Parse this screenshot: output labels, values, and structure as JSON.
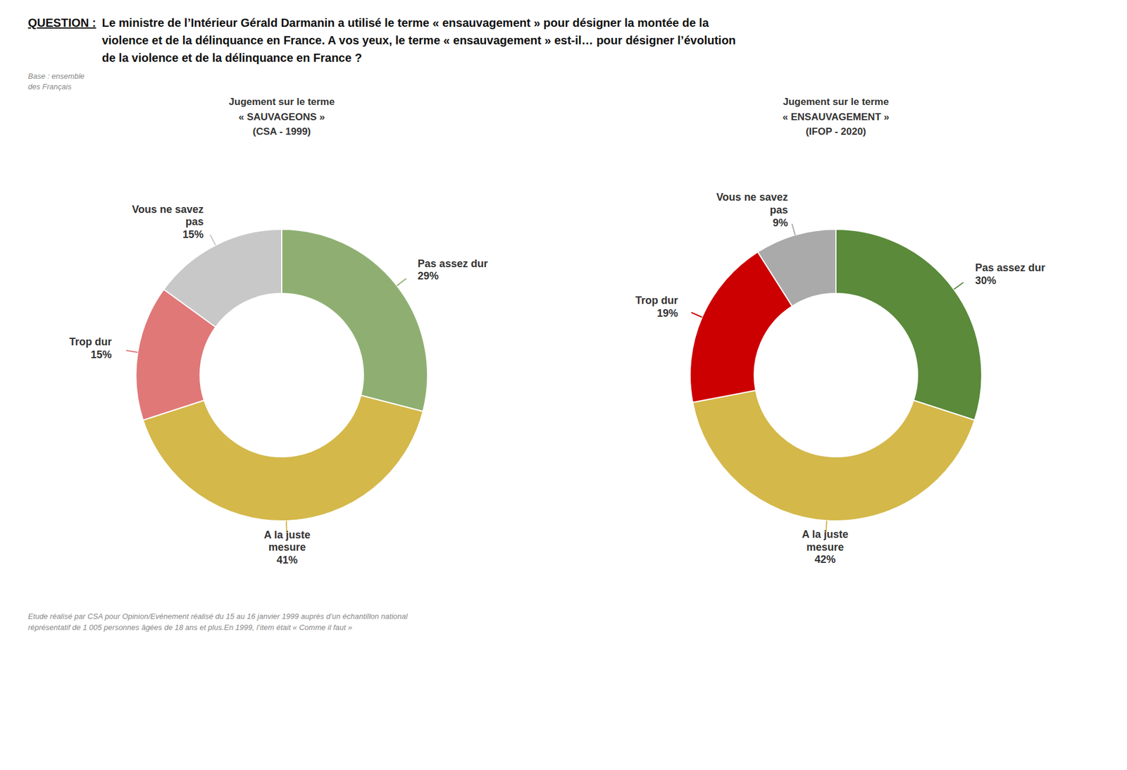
{
  "title": "Le ministre de l’Intérieur Gérald Darmanin a utilisé le terme « ensauvagement » pour désigner la montée de la\nviolence et de la délinquance en France. A vos yeux, le terme « ensauvagement » est-il… pour désigner l’évolution\nde la violence et de la délinquance en France ?",
  "annotations": [
    "QUESTION :",
    "Base : ensemble\ndes Français",
    "Etude réalisé par CSA pour Opinion/Evénement réalisé du 15 au 16 janvier 1999 auprès d’un échantillon national\nréprésentatif de 1 005 personnes âgées de 18 ans et plus.En 1999, l’item était « Comme il faut »"
  ],
  "chart_data": [
    {
      "type": "pie",
      "title": "Jugement sur le terme\n« SAUVAGEONS »\n(CSA - 1999)",
      "categories": [
        "Pas assez dur",
        "A la juste\nmesure",
        "Trop dur",
        "Vous ne savez\npas"
      ],
      "values": [
        29,
        41,
        15,
        15
      ],
      "value_labels": [
        "29%",
        "41%",
        "15%",
        "15%"
      ],
      "colors": [
        "#8faf72",
        "#d4b84a",
        "#e07878",
        "#c8c8c8"
      ],
      "data_labels": true
    },
    {
      "type": "pie",
      "title": "Jugement sur le terme\n« ENSAUVAGEMENT »\n(IFOP - 2020)",
      "categories": [
        "Pas assez dur",
        "A la juste\nmesure",
        "Trop dur",
        "Vous ne savez\npas"
      ],
      "values": [
        30,
        42,
        19,
        9
      ],
      "value_labels": [
        "30%",
        "42%",
        "19%",
        "9%"
      ],
      "colors": [
        "#5a8a3a",
        "#d4b84a",
        "#cc0000",
        "#aaaaaa"
      ],
      "data_labels": true
    }
  ]
}
